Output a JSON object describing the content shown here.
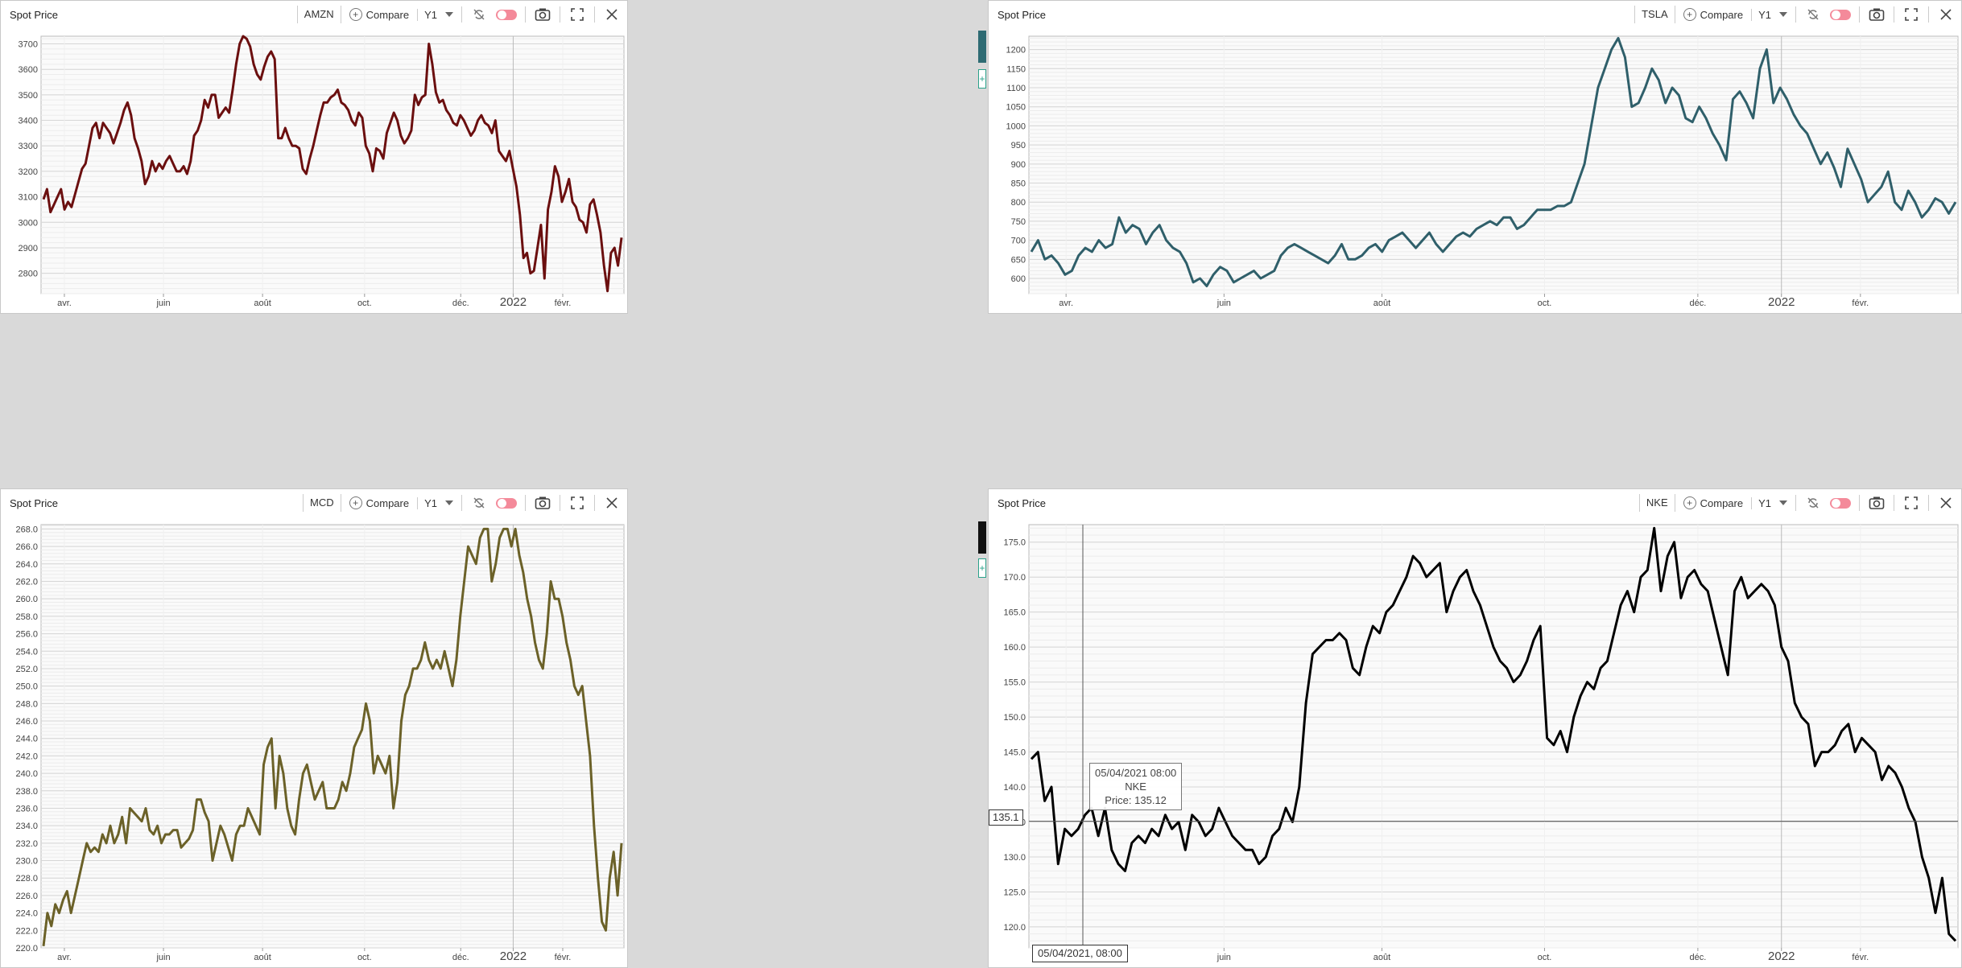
{
  "colors": {
    "amzn": "#6b0f0f",
    "tsla": "#2f5f6a",
    "mcd": "#6b6128",
    "nke": "#000000"
  },
  "panels": [
    {
      "title": "Spot Price",
      "ticker": "AMZN",
      "compare_label": "Compare",
      "period": "Y1"
    },
    {
      "title": "Spot Price",
      "ticker": "TSLA",
      "compare_label": "Compare",
      "period": "Y1"
    },
    {
      "title": "Spot Price",
      "ticker": "MCD",
      "compare_label": "Compare",
      "period": "Y1"
    },
    {
      "title": "Spot Price",
      "ticker": "NKE",
      "compare_label": "Compare",
      "period": "Y1"
    }
  ],
  "tooltip": {
    "line1": "05/04/2021 08:00",
    "line2": "NKE",
    "line3": "Price: 135.12",
    "x_label": "05/04/2021, 08:00",
    "y_label": "135.1"
  },
  "side_plus": "+",
  "chart_data": [
    {
      "type": "line",
      "title": "Spot Price",
      "series": [
        {
          "name": "AMZN",
          "values": [
            3090,
            3130,
            3040,
            3070,
            3100,
            3130,
            3050,
            3080,
            3060,
            3110,
            3160,
            3210,
            3230,
            3300,
            3370,
            3390,
            3330,
            3390,
            3370,
            3350,
            3310,
            3350,
            3390,
            3440,
            3470,
            3420,
            3330,
            3290,
            3240,
            3150,
            3180,
            3240,
            3200,
            3230,
            3210,
            3240,
            3260,
            3230,
            3200,
            3200,
            3220,
            3190,
            3240,
            3340,
            3360,
            3400,
            3480,
            3450,
            3500,
            3500,
            3410,
            3430,
            3450,
            3430,
            3520,
            3620,
            3700,
            3730,
            3720,
            3690,
            3620,
            3580,
            3560,
            3610,
            3650,
            3670,
            3640,
            3330,
            3330,
            3370,
            3330,
            3300,
            3300,
            3290,
            3210,
            3190,
            3250,
            3300,
            3360,
            3420,
            3470,
            3470,
            3490,
            3500,
            3520,
            3470,
            3460,
            3440,
            3400,
            3380,
            3430,
            3410,
            3300,
            3270,
            3200,
            3290,
            3280,
            3250,
            3350,
            3390,
            3430,
            3400,
            3340,
            3310,
            3330,
            3360,
            3500,
            3460,
            3490,
            3500,
            3700,
            3620,
            3510,
            3470,
            3480,
            3440,
            3420,
            3390,
            3380,
            3420,
            3400,
            3370,
            3340,
            3360,
            3400,
            3420,
            3390,
            3380,
            3350,
            3400,
            3280,
            3260,
            3240,
            3280,
            3210,
            3140,
            3030,
            2860,
            2880,
            2800,
            2810,
            2900,
            2990,
            2780,
            3050,
            3120,
            3220,
            3180,
            3080,
            3120,
            3170,
            3080,
            3060,
            3010,
            3000,
            2960,
            3070,
            3090,
            3030,
            2960,
            2830,
            2730,
            2880,
            2900,
            2830,
            2940
          ]
        }
      ],
      "ylim": [
        2720,
        3730
      ],
      "yticks": [
        2800,
        2900,
        3000,
        3100,
        3200,
        3300,
        3400,
        3500,
        3600,
        3700
      ],
      "xticks": [
        "avr.",
        "juin",
        "août",
        "oct.",
        "déc.",
        "2022",
        "févr."
      ]
    },
    {
      "type": "line",
      "title": "Spot Price",
      "series": [
        {
          "name": "TSLA",
          "values": [
            670,
            700,
            650,
            660,
            640,
            610,
            620,
            660,
            680,
            670,
            700,
            680,
            690,
            760,
            720,
            740,
            730,
            690,
            720,
            740,
            700,
            680,
            670,
            640,
            590,
            600,
            580,
            610,
            630,
            620,
            590,
            600,
            610,
            620,
            600,
            610,
            620,
            660,
            680,
            690,
            680,
            670,
            660,
            650,
            640,
            660,
            690,
            650,
            650,
            660,
            680,
            690,
            670,
            700,
            710,
            720,
            700,
            680,
            700,
            720,
            690,
            670,
            690,
            710,
            720,
            710,
            730,
            740,
            750,
            740,
            760,
            760,
            730,
            740,
            760,
            780,
            780,
            780,
            790,
            790,
            800,
            850,
            900,
            1000,
            1100,
            1150,
            1200,
            1230,
            1180,
            1050,
            1060,
            1100,
            1150,
            1120,
            1060,
            1100,
            1080,
            1020,
            1010,
            1050,
            1020,
            980,
            950,
            910,
            1070,
            1090,
            1060,
            1020,
            1150,
            1200,
            1060,
            1100,
            1070,
            1030,
            1000,
            980,
            940,
            900,
            930,
            890,
            840,
            940,
            900,
            860,
            800,
            820,
            840,
            880,
            800,
            780,
            830,
            800,
            760,
            780,
            810,
            800,
            770,
            800
          ]
        }
      ],
      "ylim": [
        560,
        1235
      ],
      "yticks": [
        600,
        650,
        700,
        750,
        800,
        850,
        900,
        950,
        1000,
        1050,
        1100,
        1150,
        1200
      ],
      "xticks": [
        "avr.",
        "juin",
        "août",
        "oct.",
        "déc.",
        "2022",
        "févr."
      ]
    },
    {
      "type": "line",
      "title": "Spot Price",
      "series": [
        {
          "name": "MCD",
          "values": [
            220.2,
            224,
            222.5,
            225,
            224,
            225.5,
            226.5,
            224,
            226,
            228,
            230,
            232,
            231,
            231.5,
            231,
            233,
            232,
            234,
            232,
            233,
            235,
            232,
            236,
            235.5,
            235,
            234.5,
            236,
            233.5,
            233,
            234,
            232,
            233,
            233,
            233.5,
            233.5,
            231.5,
            232,
            232.5,
            233.5,
            237,
            237,
            235.5,
            234.5,
            230,
            232,
            234,
            233,
            231.5,
            230,
            233,
            234,
            234,
            236,
            235,
            234,
            233,
            241,
            243,
            244,
            236,
            242,
            240,
            236,
            234,
            233,
            237,
            240,
            241,
            239,
            237,
            238,
            239,
            236,
            236,
            236,
            237,
            239,
            238,
            240,
            243,
            244,
            245,
            248,
            246,
            240,
            242,
            241,
            240,
            242,
            236,
            239,
            246,
            249,
            250,
            252,
            252,
            253,
            255,
            253,
            252,
            253,
            252,
            254,
            252,
            250,
            253,
            258,
            262,
            266,
            265,
            264,
            267,
            268,
            268,
            262,
            264,
            267,
            268,
            268,
            266,
            268,
            265,
            263,
            260,
            258,
            255,
            253,
            252,
            256,
            262,
            260,
            260,
            258,
            255,
            253,
            250,
            249,
            250,
            246,
            242,
            234,
            228,
            223,
            222,
            228,
            231,
            226,
            232
          ]
        }
      ],
      "ylim": [
        220,
        268.5
      ],
      "yticks": [
        220,
        222,
        224,
        226,
        228,
        230,
        232,
        234,
        236,
        238,
        240,
        242,
        244,
        246,
        248,
        250,
        252,
        254,
        256,
        258,
        260,
        262,
        264,
        266,
        268
      ],
      "xticks": [
        "avr.",
        "juin",
        "août",
        "oct.",
        "déc.",
        "2022",
        "févr."
      ]
    },
    {
      "type": "line",
      "title": "Spot Price",
      "series": [
        {
          "name": "NKE",
          "values": [
            144,
            145,
            138,
            140,
            129,
            134,
            133,
            134,
            136,
            137,
            133,
            137,
            131,
            129,
            128,
            132,
            133,
            132,
            134,
            133,
            136,
            134,
            135,
            131,
            136,
            135,
            133,
            134,
            137,
            135,
            133,
            132,
            131,
            131,
            129,
            130,
            133,
            134,
            137,
            135,
            140,
            152,
            159,
            160,
            161,
            161,
            162,
            161,
            157,
            156,
            160,
            163,
            162,
            165,
            166,
            168,
            170,
            173,
            172,
            170,
            171,
            172,
            165,
            168,
            170,
            171,
            168,
            166,
            163,
            160,
            158,
            157,
            155,
            156,
            158,
            161,
            163,
            147,
            146,
            148,
            145,
            150,
            153,
            155,
            154,
            157,
            158,
            162,
            166,
            168,
            165,
            170,
            171,
            177,
            168,
            173,
            175,
            167,
            170,
            171,
            169,
            168,
            164,
            160,
            156,
            168,
            170,
            167,
            168,
            169,
            168,
            166,
            160,
            158,
            152,
            150,
            149,
            143,
            145,
            145,
            146,
            148,
            149,
            145,
            147,
            146,
            145,
            141,
            143,
            142,
            140,
            137,
            135,
            130,
            127,
            122,
            127,
            119,
            118
          ]
        }
      ],
      "ylim": [
        117,
        177.5
      ],
      "yticks": [
        120,
        125,
        130,
        135,
        140,
        145,
        150,
        155,
        160,
        165,
        170,
        175
      ],
      "xticks": [
        "avr.",
        "juin",
        "août",
        "oct.",
        "déc.",
        "2022",
        "févr."
      ]
    }
  ]
}
